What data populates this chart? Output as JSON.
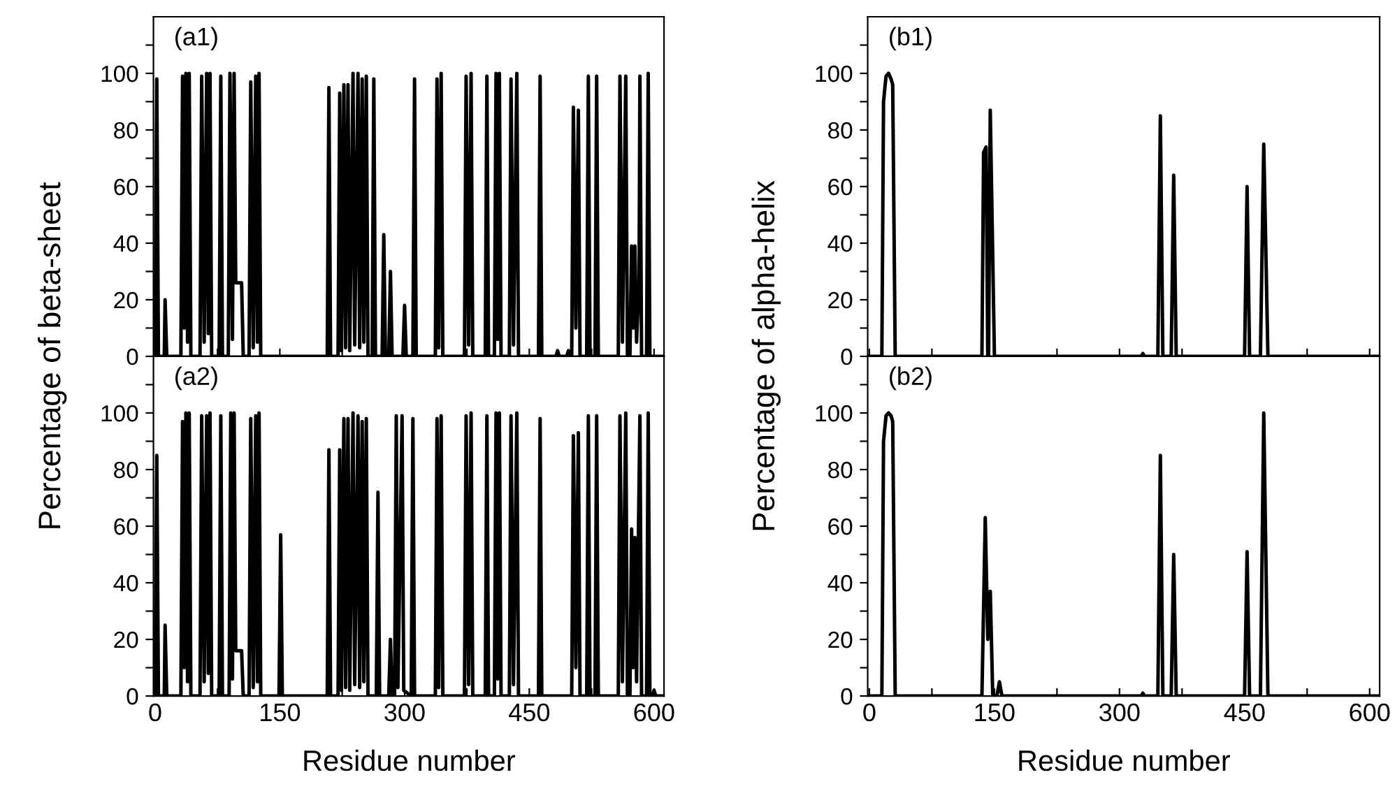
{
  "chart_data": [
    {
      "type": "line",
      "ylabel": "Percentage of beta-sheet",
      "annotations": [
        "(a1)"
      ],
      "xlim": [
        -2,
        612
      ],
      "ylim": [
        0,
        120
      ],
      "tick_labels": "y",
      "line_style": "solid",
      "grid": false,
      "xticks": [
        {
          "value": 0,
          "label": null
        },
        {
          "value": 75,
          "label": null
        },
        {
          "value": 150,
          "label": null
        },
        {
          "value": 225,
          "label": null
        },
        {
          "value": 300,
          "label": null
        },
        {
          "value": 375,
          "label": null
        },
        {
          "value": 450,
          "label": null
        },
        {
          "value": 525,
          "label": null
        },
        {
          "value": 600,
          "label": null
        }
      ],
      "yticks": [
        0,
        {
          "value": 10,
          "label": null
        },
        20,
        {
          "value": 30,
          "label": null
        },
        40,
        {
          "value": 50,
          "label": null
        },
        60,
        {
          "value": 70,
          "label": null
        },
        80,
        {
          "value": 90,
          "label": null
        },
        100,
        {
          "value": 110,
          "label": null
        }
      ],
      "series": [
        {
          "color": "#000000",
          "x": [
            0,
            2,
            4,
            11,
            12,
            14,
            31,
            33,
            35,
            37,
            39,
            41,
            43,
            54,
            56,
            59,
            62,
            64,
            66,
            68,
            77,
            79,
            81,
            88,
            90,
            93,
            95,
            97,
            104,
            106,
            113,
            115,
            118,
            121,
            123,
            125,
            127,
            207,
            209,
            211,
            220,
            222,
            224,
            227,
            229,
            232,
            234,
            238,
            240,
            244,
            246,
            249,
            251,
            254,
            256,
            261,
            263,
            265,
            273,
            275,
            277,
            281,
            283,
            285,
            298,
            300,
            302,
            310,
            312,
            314,
            337,
            339,
            341,
            344,
            346,
            372,
            374,
            377,
            380,
            382,
            397,
            399,
            401,
            408,
            410,
            412,
            414,
            416,
            426,
            428,
            431,
            435,
            437,
            461,
            463,
            465,
            482,
            484,
            486,
            495,
            497,
            499,
            501,
            503,
            506,
            509,
            511,
            519,
            521,
            523,
            529,
            531,
            533,
            557,
            559,
            562,
            566,
            568,
            571,
            573,
            575,
            577,
            579,
            582,
            583,
            585,
            591,
            593,
            595,
            610
          ],
          "values": [
            0,
            98,
            0,
            0,
            20,
            0,
            0,
            99,
            10,
            100,
            5,
            100,
            0,
            0,
            99,
            5,
            100,
            8,
            100,
            0,
            0,
            99,
            0,
            0,
            100,
            6,
            100,
            26,
            26,
            0,
            0,
            97,
            3,
            99,
            5,
            100,
            0,
            0,
            95,
            0,
            0,
            93,
            2,
            96,
            3,
            96,
            2,
            100,
            4,
            100,
            3,
            98,
            5,
            99,
            0,
            0,
            98,
            0,
            0,
            43,
            0,
            0,
            30,
            0,
            0,
            18,
            0,
            0,
            98,
            0,
            0,
            98,
            3,
            100,
            0,
            0,
            99,
            4,
            100,
            0,
            0,
            99,
            0,
            0,
            100,
            6,
            100,
            0,
            0,
            98,
            4,
            100,
            0,
            0,
            99,
            0,
            0,
            2,
            0,
            0,
            2,
            0,
            0,
            88,
            10,
            87,
            0,
            0,
            99,
            0,
            0,
            99,
            0,
            0,
            99,
            5,
            99,
            0,
            0,
            39,
            10,
            39,
            5,
            27,
            99,
            0,
            0,
            100,
            0,
            0
          ]
        }
      ]
    },
    {
      "type": "line",
      "xlabel": "Residue number",
      "annotations": [
        "(a2)"
      ],
      "xlim": [
        -2,
        612
      ],
      "ylim": [
        0,
        120
      ],
      "line_style": "solid",
      "grid": false,
      "xticks": [
        0,
        {
          "value": 75,
          "label": null
        },
        150,
        {
          "value": 225,
          "label": null
        },
        300,
        {
          "value": 375,
          "label": null
        },
        450,
        {
          "value": 525,
          "label": null
        },
        600
      ],
      "yticks": [
        0,
        {
          "value": 10,
          "label": null
        },
        20,
        {
          "value": 30,
          "label": null
        },
        40,
        {
          "value": 50,
          "label": null
        },
        60,
        {
          "value": 70,
          "label": null
        },
        80,
        {
          "value": 90,
          "label": null
        },
        100,
        {
          "value": 110,
          "label": null
        }
      ],
      "series": [
        {
          "color": "#000000",
          "x": [
            0,
            2,
            4,
            11,
            12,
            14,
            31,
            33,
            35,
            37,
            39,
            41,
            43,
            54,
            56,
            59,
            62,
            64,
            66,
            68,
            77,
            79,
            81,
            89,
            91,
            93,
            95,
            97,
            104,
            106,
            113,
            115,
            118,
            121,
            123,
            125,
            127,
            149,
            151,
            153,
            207,
            209,
            211,
            220,
            222,
            224,
            227,
            229,
            232,
            234,
            238,
            240,
            244,
            246,
            249,
            251,
            254,
            256,
            266,
            268,
            270,
            281,
            283,
            285,
            288,
            290,
            292,
            297,
            299,
            308,
            310,
            312,
            337,
            339,
            341,
            344,
            346,
            372,
            374,
            377,
            380,
            382,
            397,
            399,
            401,
            408,
            410,
            412,
            414,
            416,
            426,
            428,
            431,
            435,
            437,
            461,
            463,
            465,
            501,
            503,
            506,
            509,
            511,
            519,
            521,
            523,
            529,
            531,
            533,
            557,
            559,
            562,
            566,
            568,
            571,
            573,
            575,
            577,
            579,
            583,
            585,
            591,
            593,
            595,
            598,
            600,
            602,
            610
          ],
          "values": [
            0,
            85,
            0,
            0,
            25,
            0,
            0,
            97,
            10,
            100,
            5,
            100,
            0,
            0,
            99,
            5,
            99,
            8,
            100,
            0,
            0,
            99,
            0,
            0,
            100,
            6,
            100,
            16,
            16,
            0,
            0,
            98,
            3,
            99,
            5,
            100,
            0,
            0,
            57,
            0,
            0,
            87,
            0,
            0,
            87,
            2,
            98,
            3,
            98,
            2,
            100,
            4,
            99,
            3,
            97,
            5,
            98,
            0,
            0,
            72,
            0,
            0,
            20,
            0,
            0,
            99,
            3,
            99,
            2,
            0,
            98,
            0,
            0,
            98,
            3,
            99,
            0,
            0,
            99,
            4,
            100,
            0,
            0,
            99,
            0,
            0,
            100,
            6,
            100,
            0,
            0,
            99,
            4,
            100,
            0,
            0,
            98,
            0,
            0,
            92,
            10,
            93,
            0,
            0,
            99,
            0,
            0,
            99,
            0,
            0,
            99,
            5,
            100,
            0,
            0,
            59,
            10,
            56,
            5,
            99,
            0,
            0,
            100,
            0,
            0,
            2,
            0,
            0
          ]
        }
      ]
    },
    {
      "type": "line",
      "ylabel": "Percentage of alpha-helix",
      "annotations": [
        "(b1)"
      ],
      "xlim": [
        -2,
        612
      ],
      "ylim": [
        0,
        120
      ],
      "tick_labels": "y",
      "line_style": "solid",
      "grid": false,
      "xticks": [
        {
          "value": 0,
          "label": null
        },
        {
          "value": 75,
          "label": null
        },
        {
          "value": 150,
          "label": null
        },
        {
          "value": 225,
          "label": null
        },
        {
          "value": 300,
          "label": null
        },
        {
          "value": 375,
          "label": null
        },
        {
          "value": 450,
          "label": null
        },
        {
          "value": 525,
          "label": null
        },
        {
          "value": 600,
          "label": null
        }
      ],
      "yticks": [
        0,
        {
          "value": 10,
          "label": null
        },
        20,
        {
          "value": 30,
          "label": null
        },
        40,
        {
          "value": 50,
          "label": null
        },
        60,
        {
          "value": 70,
          "label": null
        },
        80,
        {
          "value": 90,
          "label": null
        },
        100,
        {
          "value": 110,
          "label": null
        }
      ],
      "series": [
        {
          "color": "#000000",
          "x": [
            0,
            15,
            17,
            20,
            23,
            26,
            28,
            31,
            135,
            137,
            140,
            142,
            143,
            145,
            150,
            326,
            328,
            330,
            346,
            349,
            352,
            362,
            365,
            368,
            450,
            453,
            456,
            469,
            473,
            478,
            610
          ],
          "values": [
            0,
            0,
            90,
            99,
            100,
            98,
            96,
            0,
            0,
            72,
            74,
            0,
            0,
            87,
            0,
            0,
            1,
            0,
            0,
            85,
            0,
            0,
            64,
            0,
            0,
            60,
            0,
            0,
            75,
            0,
            0
          ]
        }
      ]
    },
    {
      "type": "line",
      "xlabel": "Residue number",
      "annotations": [
        "(b2)"
      ],
      "xlim": [
        -2,
        612
      ],
      "ylim": [
        0,
        120
      ],
      "line_style": "solid",
      "grid": false,
      "xticks": [
        0,
        {
          "value": 75,
          "label": null
        },
        150,
        {
          "value": 225,
          "label": null
        },
        300,
        {
          "value": 375,
          "label": null
        },
        450,
        {
          "value": 525,
          "label": null
        },
        600
      ],
      "yticks": [
        0,
        {
          "value": 10,
          "label": null
        },
        20,
        {
          "value": 30,
          "label": null
        },
        40,
        {
          "value": 50,
          "label": null
        },
        60,
        {
          "value": 70,
          "label": null
        },
        80,
        {
          "value": 90,
          "label": null
        },
        100,
        {
          "value": 110,
          "label": null
        }
      ],
      "series": [
        {
          "color": "#000000",
          "x": [
            0,
            15,
            17,
            20,
            23,
            26,
            28,
            31,
            135,
            139,
            142,
            145,
            148,
            153,
            156,
            159,
            326,
            328,
            330,
            346,
            349,
            352,
            362,
            365,
            368,
            450,
            453,
            456,
            469,
            473,
            478,
            610
          ],
          "values": [
            0,
            0,
            90,
            99,
            100,
            99,
            97,
            0,
            0,
            63,
            20,
            37,
            0,
            0,
            5,
            0,
            0,
            1,
            0,
            0,
            85,
            0,
            0,
            50,
            0,
            0,
            51,
            0,
            0,
            100,
            0,
            0
          ]
        }
      ]
    }
  ]
}
